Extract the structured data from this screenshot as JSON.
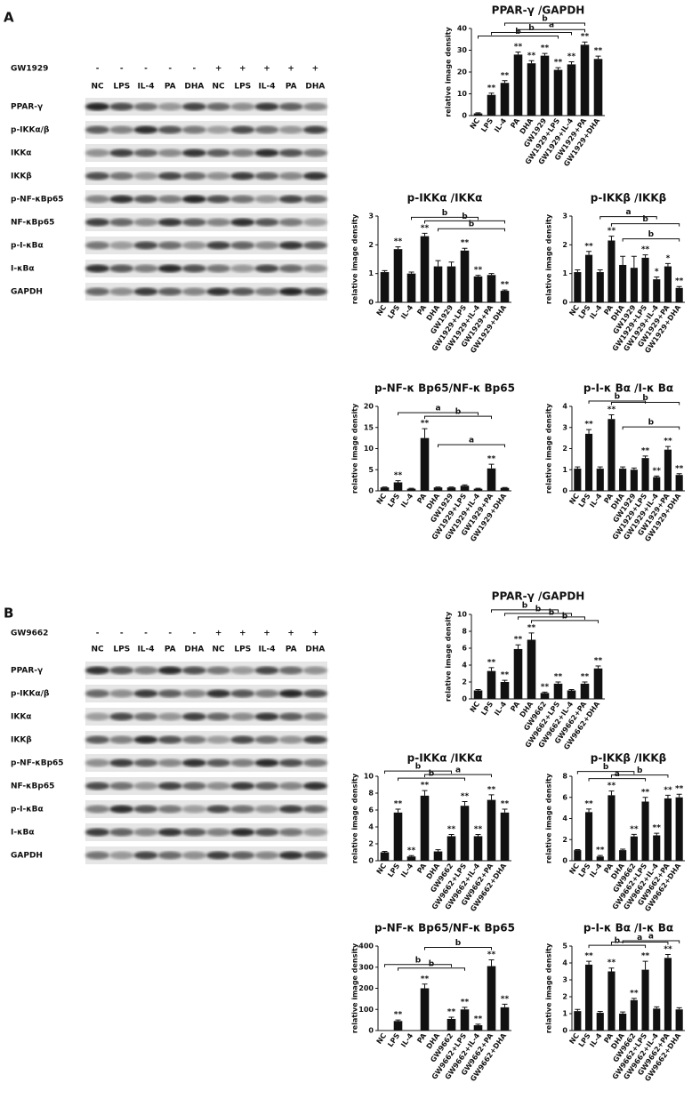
{
  "blots": [
    {
      "label": "A",
      "treatment": "GW1929",
      "signs": [
        "-",
        "-",
        "-",
        "-",
        "-",
        "+",
        "+",
        "+",
        "+",
        "+"
      ],
      "lanes": [
        "NC",
        "LPS",
        "IL-4",
        "PA",
        "DHA",
        "NC",
        "LPS",
        "IL-4",
        "PA",
        "DHA"
      ],
      "proteins": [
        "PPAR-γ",
        "p-IKKα/β",
        "IKKα",
        "IKKβ",
        "p-NF-κBp65",
        "NF-κBp65",
        "p-I-κBα",
        "I-κBα",
        "GAPDH"
      ]
    },
    {
      "label": "B",
      "treatment": "GW9662",
      "signs": [
        "-",
        "-",
        "-",
        "-",
        "-",
        "+",
        "+",
        "+",
        "+",
        "+"
      ],
      "lanes": [
        "NC",
        "LPS",
        "IL-4",
        "PA",
        "DHA",
        "NC",
        "LPS",
        "IL-4",
        "PA",
        "DHA"
      ],
      "proteins": [
        "PPAR-γ",
        "p-IKKα/β",
        "IKKα",
        "IKKβ",
        "p-NF-κBp65",
        "NF-κBp65",
        "p-I-κBα",
        "I-κBα",
        "GAPDH"
      ]
    }
  ],
  "chart_data": [
    {
      "type": "bar",
      "title": "PPAR-γ /GAPDH",
      "ylabel": "relative image density",
      "color": "#111111",
      "categories": [
        "NC",
        "LPS",
        "IL-4",
        "PA",
        "DHA",
        "GW1929",
        "GW1929+LPS",
        "GW1929+IL-4",
        "GW1929+PA",
        "GW1929+DHA"
      ],
      "values": [
        1,
        9.5,
        15,
        28,
        24,
        27.5,
        21,
        23.5,
        32.5,
        26
      ],
      "errors": [
        0.3,
        0.8,
        1,
        1.2,
        1.2,
        1,
        1,
        1.2,
        1.3,
        1.3
      ],
      "stars": [
        null,
        "**",
        "**",
        "**",
        "**",
        "**",
        "**",
        "**",
        "**",
        "**"
      ],
      "brackets": [
        {
          "from": 3,
          "to": 8,
          "label": "a"
        },
        {
          "from": 0,
          "to": 6,
          "label": "b"
        },
        {
          "from": 1,
          "to": 7,
          "label": "b"
        },
        {
          "from": 2,
          "to": 8,
          "label": "b"
        }
      ],
      "ylim": [
        0,
        40
      ],
      "yticks": [
        0,
        10,
        20,
        30,
        40
      ]
    },
    {
      "type": "bar",
      "title": "p-IKKα /IKKα",
      "ylabel": "relative image density",
      "color": "#111111",
      "categories": [
        "NC",
        "LPS",
        "IL-4",
        "PA",
        "DHA",
        "GW1929",
        "GW1929+LPS",
        "GW1929+IL-4",
        "GW1929+PA",
        "GW1929+DHA"
      ],
      "values": [
        1.05,
        1.85,
        1.0,
        2.3,
        1.25,
        1.25,
        1.8,
        0.9,
        0.95,
        0.4
      ],
      "errors": [
        0.05,
        0.08,
        0.05,
        0.1,
        0.2,
        0.15,
        0.08,
        0.04,
        0.05,
        0.03
      ],
      "stars": [
        null,
        "**",
        null,
        "**",
        null,
        null,
        "**",
        "**",
        null,
        "**"
      ],
      "brackets": [
        {
          "from": 3,
          "to": 9,
          "label": "b"
        },
        {
          "from": 2,
          "to": 7,
          "label": "b"
        },
        {
          "from": 4,
          "to": 9,
          "label": "b"
        }
      ],
      "ylim": [
        0,
        3
      ],
      "yticks": [
        0,
        1,
        2,
        3
      ]
    },
    {
      "type": "bar",
      "title": "p-IKKβ /IKKβ",
      "ylabel": "relative image density",
      "color": "#111111",
      "categories": [
        "NC",
        "LPS",
        "IL-4",
        "PA",
        "DHA",
        "GW1929",
        "GW1929+LPS",
        "GW1929+IL-4",
        "GW1929+PA",
        "GW1929+DHA"
      ],
      "values": [
        1.05,
        1.65,
        1.05,
        2.15,
        1.3,
        1.2,
        1.55,
        0.8,
        1.25,
        0.5
      ],
      "errors": [
        0.08,
        0.12,
        0.08,
        0.15,
        0.3,
        0.4,
        0.1,
        0.08,
        0.1,
        0.05
      ],
      "stars": [
        null,
        "**",
        null,
        "**",
        null,
        null,
        "**",
        "*",
        "*",
        "**"
      ],
      "brackets": [
        {
          "from": 3,
          "to": 9,
          "label": "b"
        },
        {
          "from": 4,
          "to": 9,
          "label": "b"
        },
        {
          "from": 2,
          "to": 7,
          "label": "a"
        }
      ],
      "ylim": [
        0,
        3
      ],
      "yticks": [
        0,
        1,
        2,
        3
      ]
    },
    {
      "type": "bar",
      "title": "p-NF-κ Bp65/NF-κ Bp65",
      "ylabel": "relative image density",
      "color": "#111111",
      "categories": [
        "NC",
        "LPS",
        "IL-4",
        "PA",
        "DHA",
        "GW1929",
        "GW1929+LPS",
        "GW1929+IL-4",
        "GW1929+PA",
        "GW1929+DHA"
      ],
      "values": [
        0.8,
        2,
        0.5,
        12.5,
        0.8,
        0.8,
        1.2,
        0.5,
        5.3,
        0.7
      ],
      "errors": [
        0.1,
        0.4,
        0.1,
        2.2,
        0.1,
        0.1,
        0.2,
        0.1,
        1,
        0.1
      ],
      "stars": [
        null,
        "**",
        null,
        "**",
        null,
        null,
        null,
        null,
        "**",
        null
      ],
      "brackets": [
        {
          "from": 3,
          "to": 8,
          "label": "b"
        },
        {
          "from": 1,
          "to": 7,
          "label": "a"
        },
        {
          "from": 4,
          "to": 9,
          "label": "a"
        }
      ],
      "ylim": [
        0,
        20
      ],
      "yticks": [
        0,
        5,
        10,
        15,
        20
      ]
    },
    {
      "type": "bar",
      "title": "p-I-κ Bα /I-κ Bα",
      "ylabel": "relative image density",
      "color": "#111111",
      "categories": [
        "NC",
        "LPS",
        "IL-4",
        "PA",
        "DHA",
        "GW1929",
        "GW1929+LPS",
        "GW1929+IL-4",
        "GW1929+PA",
        "GW1929+DHA"
      ],
      "values": [
        1.05,
        2.7,
        1.05,
        3.4,
        1.05,
        1.0,
        1.55,
        0.65,
        1.95,
        0.75
      ],
      "errors": [
        0.08,
        0.2,
        0.08,
        0.2,
        0.08,
        0.08,
        0.1,
        0.05,
        0.15,
        0.06
      ],
      "stars": [
        null,
        "**",
        null,
        "**",
        null,
        null,
        "**",
        "**",
        "**",
        "**"
      ],
      "brackets": [
        {
          "from": 3,
          "to": 9,
          "label": "b"
        },
        {
          "from": 1,
          "to": 6,
          "label": "b"
        },
        {
          "from": 4,
          "to": 9,
          "label": "b"
        }
      ],
      "ylim": [
        0,
        4
      ],
      "yticks": [
        0,
        1,
        2,
        3,
        4
      ]
    },
    {
      "type": "bar",
      "title": "PPAR-γ /GAPDH",
      "ylabel": "relative image density",
      "color": "#111111",
      "categories": [
        "NC",
        "LPS",
        "IL-4",
        "PA",
        "DHA",
        "GW9662",
        "GW9662+LPS",
        "GW9662+IL-4",
        "GW9662+PA",
        "GW9662+DHA"
      ],
      "values": [
        1,
        3.3,
        2,
        5.9,
        7,
        0.7,
        1.8,
        1.0,
        1.8,
        3.6
      ],
      "errors": [
        0.1,
        0.4,
        0.2,
        0.5,
        0.8,
        0.1,
        0.2,
        0.1,
        0.2,
        0.3
      ],
      "stars": [
        null,
        "**",
        "**",
        "**",
        "**",
        "**",
        "**",
        null,
        "**",
        "**"
      ],
      "brackets": [
        {
          "from": 4,
          "to": 9,
          "label": "b"
        },
        {
          "from": 3,
          "to": 8,
          "label": "b"
        },
        {
          "from": 2,
          "to": 7,
          "label": "b"
        },
        {
          "from": 1,
          "to": 6,
          "label": "b"
        }
      ],
      "ylim": [
        0,
        10
      ],
      "yticks": [
        0,
        2,
        4,
        6,
        8,
        10
      ]
    },
    {
      "type": "bar",
      "title": "p-IKKα /IKKα",
      "ylabel": "relative image density",
      "color": "#111111",
      "categories": [
        "NC",
        "LPS",
        "IL-4",
        "PA",
        "DHA",
        "GW9662",
        "GW9662+LPS",
        "GW9662+IL-4",
        "GW9662+PA",
        "GW9662+DHA"
      ],
      "values": [
        1,
        5.7,
        0.5,
        7.7,
        1.1,
        2.9,
        6.5,
        2.9,
        7.2,
        5.7
      ],
      "errors": [
        0.1,
        0.4,
        0.1,
        0.6,
        0.2,
        0.2,
        0.5,
        0.2,
        0.6,
        0.4
      ],
      "stars": [
        null,
        "**",
        "**",
        "**",
        null,
        "**",
        "**",
        "**",
        "**",
        "**"
      ],
      "brackets": [
        {
          "from": 1,
          "to": 6,
          "label": "b"
        },
        {
          "from": 3,
          "to": 8,
          "label": "a"
        },
        {
          "from": 0,
          "to": 5,
          "label": "b"
        }
      ],
      "ylim": [
        0,
        10
      ],
      "yticks": [
        0,
        2,
        4,
        6,
        8,
        10
      ]
    },
    {
      "type": "bar",
      "title": "p-IKKβ /IKKβ",
      "ylabel": "relative image density",
      "color": "#111111",
      "categories": [
        "NC",
        "LPS",
        "IL-4",
        "PA",
        "DHA",
        "GW9662",
        "GW9662+LPS",
        "GW9662+IL-4",
        "GW9662+PA",
        "GW9662+DHA"
      ],
      "values": [
        1,
        4.6,
        0.4,
        6.2,
        1.0,
        2.3,
        5.6,
        2.4,
        5.9,
        6.0
      ],
      "errors": [
        0.05,
        0.3,
        0.1,
        0.4,
        0.1,
        0.2,
        0.4,
        0.2,
        0.3,
        0.3
      ],
      "stars": [
        null,
        "**",
        "**",
        "**",
        null,
        "**",
        "**",
        "**",
        "**",
        "**"
      ],
      "brackets": [
        {
          "from": 1,
          "to": 6,
          "label": "a"
        },
        {
          "from": 3,
          "to": 8,
          "label": "b"
        },
        {
          "from": 0,
          "to": 5,
          "label": "b"
        }
      ],
      "ylim": [
        0,
        8
      ],
      "yticks": [
        0,
        2,
        4,
        6,
        8
      ]
    },
    {
      "type": "bar",
      "title": "p-NF-κ Bp65/NF-κ Bp65",
      "ylabel": "relative image density",
      "color": "#111111",
      "categories": [
        "NC",
        "LPS",
        "IL-4",
        "PA",
        "DHA",
        "GW9662",
        "GW9662+LPS",
        "GW9662+IL-4",
        "GW9662+PA",
        "GW9662+DHA"
      ],
      "values": [
        0,
        45,
        0,
        200,
        0,
        55,
        100,
        25,
        305,
        110
      ],
      "errors": [
        0,
        5,
        0,
        20,
        0,
        8,
        10,
        5,
        30,
        15
      ],
      "stars": [
        null,
        "**",
        null,
        "**",
        null,
        "**",
        "**",
        "**",
        "**",
        "**"
      ],
      "brackets": [
        {
          "from": 3,
          "to": 8,
          "label": "b"
        },
        {
          "from": 1,
          "to": 6,
          "label": "b"
        },
        {
          "from": 0,
          "to": 5,
          "label": "b"
        }
      ],
      "ylim": [
        0,
        400
      ],
      "yticks": [
        0,
        100,
        200,
        300,
        400
      ]
    },
    {
      "type": "bar",
      "title": "p-I-κ Bα /I-κ Bα",
      "ylabel": "relative image density",
      "color": "#111111",
      "categories": [
        "NC",
        "LPS",
        "IL-4",
        "PA",
        "DHA",
        "GW9662",
        "GW9662+LPS",
        "GW9662+IL-4",
        "GW9662+PA",
        "GW9662+DHA"
      ],
      "values": [
        1.15,
        3.9,
        1.05,
        3.5,
        1.0,
        1.8,
        3.6,
        1.3,
        4.3,
        1.25
      ],
      "errors": [
        0.1,
        0.2,
        0.08,
        0.2,
        0.1,
        0.1,
        0.5,
        0.1,
        0.2,
        0.1
      ],
      "stars": [
        null,
        "**",
        null,
        "**",
        null,
        "**",
        "**",
        null,
        "**",
        null
      ],
      "brackets": [
        {
          "from": 3,
          "to": 8,
          "label": "a"
        },
        {
          "from": 1,
          "to": 6,
          "label": "b"
        },
        {
          "from": 4,
          "to": 9,
          "label": "a"
        }
      ],
      "ylim": [
        0,
        5
      ],
      "yticks": [
        0,
        1,
        2,
        3,
        4,
        5
      ]
    }
  ]
}
